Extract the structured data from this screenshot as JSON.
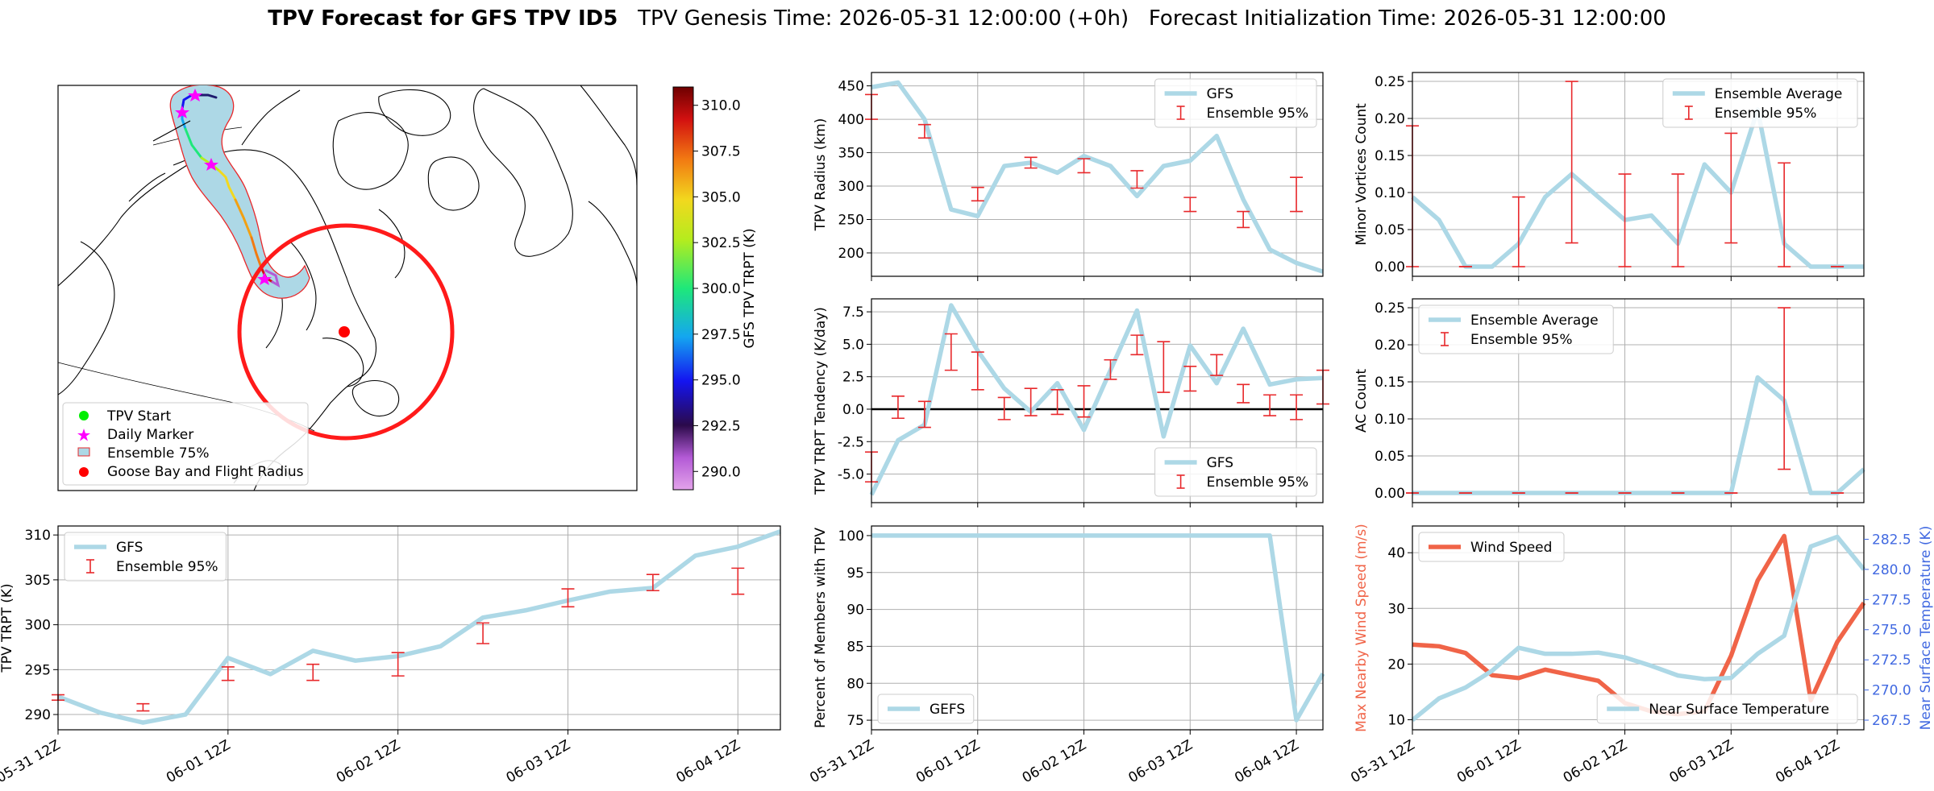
{
  "header": {
    "title": "TPV Forecast for GFS TPV ID5",
    "genesis": "TPV Genesis Time: 2026-05-31 12:00:00 (+0h)",
    "init": "Forecast Initialization Time: 2026-05-31 12:00:00"
  },
  "colors": {
    "gfs_line": "#add8e6",
    "ensemble_bar": "#e8282b",
    "wind": "#f06448",
    "temp_axis": "#4169e1",
    "grid": "#b0b0b0",
    "flight_circle": "#ff1a1a",
    "ensemble75_fill": "#add8e6",
    "ensemble75_edge": "#e8282b"
  },
  "time_ticks": [
    "05-31 12Z",
    "06-01 12Z",
    "06-02 12Z",
    "06-03 12Z",
    "06-04 12Z"
  ],
  "map": {
    "legend": [
      {
        "icon": "green-dot-icon",
        "label": "TPV Start"
      },
      {
        "icon": "magenta-star-icon",
        "label": "Daily Marker"
      },
      {
        "icon": "ensemble-patch-icon",
        "label": "Ensemble 75%"
      },
      {
        "icon": "red-dot-icon",
        "label": "Goose Bay and Flight Radius"
      }
    ],
    "colorbar": {
      "label": "GFS TPV TRPT (K)",
      "ticks": [
        "310.0",
        "307.5",
        "305.0",
        "302.5",
        "300.0",
        "297.5",
        "295.0",
        "292.5",
        "290.0"
      ],
      "range": [
        289.0,
        311.0
      ]
    }
  },
  "chart_data": [
    {
      "id": "trpt",
      "type": "line",
      "xlabel": "",
      "ylabel": "TPV TRPT (K)",
      "ylim": [
        288.3,
        311.0
      ],
      "yticks": [
        290,
        295,
        300,
        305,
        310
      ],
      "x": [
        0,
        0.25,
        0.5,
        0.75,
        1,
        1.25,
        1.5,
        1.75,
        2,
        2.25,
        2.5,
        2.75,
        3,
        3.25,
        3.5,
        3.75,
        4,
        4.25
      ],
      "series": [
        {
          "name": "GFS",
          "values": [
            292.0,
            290.2,
            289.1,
            290.0,
            296.3,
            294.5,
            297.1,
            296.0,
            296.5,
            297.6,
            300.8,
            301.6,
            302.7,
            303.7,
            304.1,
            307.7,
            308.7,
            310.4
          ]
        }
      ],
      "ensemble": {
        "name": "Ensemble 95%",
        "points": [
          [
            0,
            291.6,
            292.2
          ],
          [
            0.5,
            290.4,
            291.2
          ],
          [
            1.0,
            293.8,
            295.3
          ],
          [
            1.5,
            293.8,
            295.6
          ],
          [
            2.0,
            294.3,
            296.9
          ],
          [
            2.5,
            297.9,
            300.2
          ],
          [
            3.0,
            302.0,
            304.0
          ],
          [
            3.5,
            303.8,
            305.6
          ],
          [
            4.0,
            303.4,
            306.3
          ]
        ]
      },
      "legend": [
        "GFS",
        "Ensemble 95%"
      ],
      "legend_position": "upper-left",
      "grid": true
    },
    {
      "id": "radius",
      "type": "line",
      "ylabel": "TPV Radius (km)",
      "ylim": [
        165,
        470
      ],
      "yticks": [
        200,
        250,
        300,
        350,
        400,
        450
      ],
      "x": [
        0,
        0.25,
        0.5,
        0.75,
        1,
        1.25,
        1.5,
        1.75,
        2,
        2.25,
        2.5,
        2.75,
        3,
        3.25,
        3.5,
        3.75,
        4,
        4.25
      ],
      "series": [
        {
          "name": "GFS",
          "values": [
            448,
            455,
            400,
            265,
            255,
            330,
            335,
            320,
            345,
            330,
            285,
            330,
            338,
            375,
            280,
            205,
            185,
            172
          ]
        }
      ],
      "ensemble": {
        "name": "Ensemble 95%",
        "points": [
          [
            0,
            400,
            437
          ],
          [
            0.5,
            372,
            392
          ],
          [
            1.0,
            278,
            298
          ],
          [
            1.5,
            327,
            343
          ],
          [
            2.0,
            320,
            341
          ],
          [
            2.5,
            297,
            323
          ],
          [
            3.0,
            262,
            283
          ],
          [
            3.5,
            238,
            262
          ],
          [
            4.0,
            262,
            313
          ]
        ]
      },
      "legend": [
        "GFS",
        "Ensemble 95%"
      ],
      "legend_position": "upper-right",
      "grid": true
    },
    {
      "id": "tendency",
      "type": "line",
      "ylabel": "TPV TRPT Tendency (K/day)",
      "ylim": [
        -7.2,
        8.5
      ],
      "yticks": [
        -5.0,
        -2.5,
        0.0,
        2.5,
        5.0,
        7.5
      ],
      "x": [
        0,
        0.25,
        0.5,
        0.75,
        1,
        1.25,
        1.5,
        1.75,
        2,
        2.25,
        2.5,
        2.75,
        3,
        3.25,
        3.5,
        3.75,
        4,
        4.25
      ],
      "series": [
        {
          "name": "GFS",
          "values": [
            -6.6,
            -2.4,
            -1.2,
            8.0,
            4.5,
            1.6,
            -0.2,
            2.0,
            -1.6,
            3.0,
            7.6,
            -2.1,
            4.9,
            2.0,
            6.2,
            1.9,
            2.3,
            2.4
          ]
        }
      ],
      "ensemble": {
        "name": "Ensemble 95%",
        "points": [
          [
            0,
            -5.6,
            -3.3
          ],
          [
            0.25,
            -0.7,
            1.0
          ],
          [
            0.5,
            -1.4,
            0.6
          ],
          [
            0.75,
            3.0,
            5.8
          ],
          [
            1.0,
            1.5,
            4.4
          ],
          [
            1.25,
            -0.8,
            0.9
          ],
          [
            1.5,
            -0.5,
            1.6
          ],
          [
            1.75,
            -0.4,
            1.5
          ],
          [
            2.0,
            -0.6,
            1.8
          ],
          [
            2.25,
            2.3,
            3.8
          ],
          [
            2.5,
            4.2,
            5.7
          ],
          [
            2.75,
            1.3,
            5.2
          ],
          [
            3.0,
            1.4,
            3.3
          ],
          [
            3.25,
            2.6,
            4.2
          ],
          [
            3.5,
            0.5,
            1.9
          ],
          [
            3.75,
            -0.5,
            1.1
          ],
          [
            4.0,
            -0.8,
            1.1
          ],
          [
            4.25,
            0.4,
            3.0
          ]
        ]
      },
      "zero_line": true,
      "legend": [
        "GFS",
        "Ensemble 95%"
      ],
      "legend_position": "lower-right",
      "grid": true
    },
    {
      "id": "percent",
      "type": "line",
      "ylabel": "Percent of Members with TPV",
      "ylim": [
        73.7,
        101.3
      ],
      "yticks": [
        75,
        80,
        85,
        90,
        95,
        100
      ],
      "x": [
        0,
        0.25,
        0.5,
        0.75,
        1,
        1.25,
        1.5,
        1.75,
        2,
        2.25,
        2.5,
        2.75,
        3,
        3.25,
        3.5,
        3.75,
        4,
        4.25
      ],
      "series": [
        {
          "name": "GEFS",
          "values": [
            100,
            100,
            100,
            100,
            100,
            100,
            100,
            100,
            100,
            100,
            100,
            100,
            100,
            100,
            100,
            100,
            75,
            81.3
          ]
        }
      ],
      "legend": [
        "GEFS"
      ],
      "legend_position": "lower-left",
      "grid": true
    },
    {
      "id": "minor",
      "type": "line",
      "ylabel": "Minor Vortices Count",
      "ylim": [
        -0.013,
        0.262
      ],
      "yticks": [
        0.0,
        0.05,
        0.1,
        0.15,
        0.2,
        0.25
      ],
      "x": [
        0,
        0.25,
        0.5,
        0.75,
        1,
        1.25,
        1.5,
        1.75,
        2,
        2.25,
        2.5,
        2.75,
        3,
        3.25,
        3.5,
        3.75,
        4,
        4.25
      ],
      "series": [
        {
          "name": "Ensemble Average",
          "values": [
            0.094,
            0.063,
            0.0,
            0.0,
            0.031,
            0.094,
            0.125,
            0.094,
            0.063,
            0.069,
            0.031,
            0.138,
            0.1,
            0.212,
            0.031,
            0.0,
            0.0,
            0.0
          ]
        }
      ],
      "ensemble": {
        "name": "Ensemble 95%",
        "points": [
          [
            0,
            0.0,
            0.19
          ],
          [
            0.5,
            0.0,
            0.0
          ],
          [
            1.0,
            0.0,
            0.094
          ],
          [
            1.5,
            0.032,
            0.25
          ],
          [
            2.0,
            0.0,
            0.125
          ],
          [
            2.5,
            0.0,
            0.125
          ],
          [
            3.0,
            0.032,
            0.18
          ],
          [
            3.5,
            0.0,
            0.14
          ],
          [
            4.0,
            0.0,
            0.0
          ]
        ]
      },
      "legend": [
        "Ensemble Average",
        "Ensemble 95%"
      ],
      "legend_position": "upper-right",
      "grid": true
    },
    {
      "id": "ac",
      "type": "line",
      "ylabel": "AC Count",
      "ylim": [
        -0.013,
        0.262
      ],
      "yticks": [
        0.0,
        0.05,
        0.1,
        0.15,
        0.2,
        0.25
      ],
      "x": [
        0,
        0.25,
        0.5,
        0.75,
        1,
        1.25,
        1.5,
        1.75,
        2,
        2.25,
        2.5,
        2.75,
        3,
        3.25,
        3.5,
        3.75,
        4,
        4.25
      ],
      "series": [
        {
          "name": "Ensemble Average",
          "values": [
            0,
            0,
            0,
            0,
            0,
            0,
            0,
            0,
            0,
            0,
            0,
            0,
            0,
            0.156,
            0.125,
            0.0,
            0.0,
            0.032
          ]
        }
      ],
      "ensemble": {
        "name": "Ensemble 95%",
        "points": [
          [
            0,
            0.0,
            0.0
          ],
          [
            0.5,
            0.0,
            0.0
          ],
          [
            1.0,
            0.0,
            0.0
          ],
          [
            1.5,
            0.0,
            0.0
          ],
          [
            2.0,
            0.0,
            0.0
          ],
          [
            2.5,
            0.0,
            0.0
          ],
          [
            3.0,
            0.0,
            0.0
          ],
          [
            3.5,
            0.032,
            0.25
          ],
          [
            4.0,
            0.0,
            0.0
          ]
        ]
      },
      "legend": [
        "Ensemble Average",
        "Ensemble 95%"
      ],
      "legend_position": "upper-left",
      "grid": true
    },
    {
      "id": "wind_temp",
      "type": "line",
      "ylabel": "Max Nearby Wind Speed (m/s)",
      "ylim": [
        8.2,
        44.8
      ],
      "yticks": [
        10,
        20,
        30,
        40
      ],
      "y2label": "Near Surface Temperature (K)",
      "y2lim": [
        266.7,
        283.6
      ],
      "y2ticks": [
        267.5,
        270.0,
        272.5,
        275.0,
        277.5,
        280.0,
        282.5
      ],
      "x": [
        0,
        0.25,
        0.5,
        0.75,
        1,
        1.25,
        1.5,
        1.75,
        2,
        2.25,
        2.5,
        2.75,
        3,
        3.25,
        3.5,
        3.75,
        4,
        4.25
      ],
      "series": [
        {
          "name": "Wind Speed",
          "axis": "left",
          "values": [
            23.5,
            23.2,
            22.0,
            18.0,
            17.5,
            19.0,
            18.0,
            17.0,
            13.0,
            11.5,
            11.0,
            11.5,
            21.5,
            35.0,
            43.0,
            13.5,
            24.0,
            31.0
          ]
        },
        {
          "name": "Near Surface Temperature",
          "axis": "right",
          "values": [
            267.5,
            269.3,
            270.2,
            271.6,
            273.5,
            273.0,
            273.0,
            273.1,
            272.7,
            272.0,
            271.2,
            270.9,
            271.0,
            273.0,
            274.5,
            281.9,
            282.7,
            280.0
          ]
        }
      ],
      "legend_left": [
        "Wind Speed"
      ],
      "legend_right": [
        "Near Surface Temperature"
      ],
      "grid": true
    }
  ]
}
